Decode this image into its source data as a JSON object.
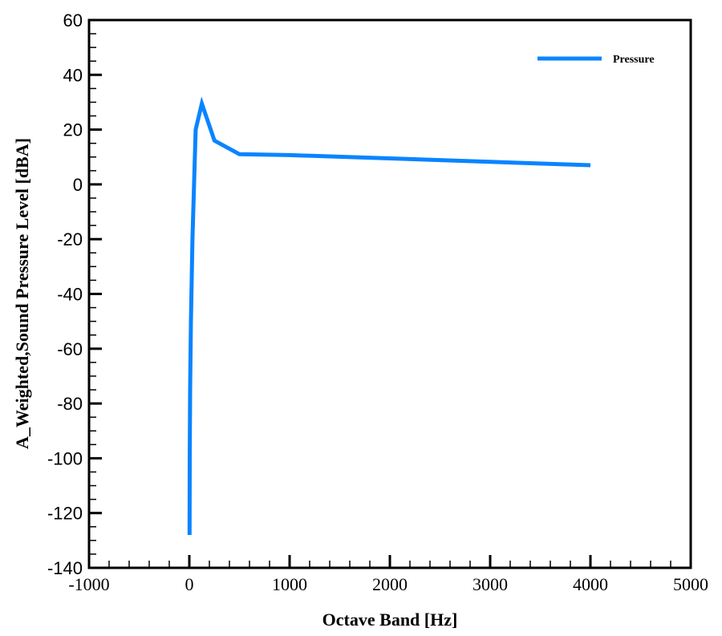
{
  "chart_data": {
    "type": "line",
    "title": "",
    "xlabel": "Octave Band [Hz]",
    "ylabel": "A_Weighted,Sound Pressure Level [dBA]",
    "xlim": [
      -1000,
      5000
    ],
    "ylim": [
      -140,
      60
    ],
    "x_ticks": [
      -1000,
      0,
      1000,
      2000,
      3000,
      4000,
      5000
    ],
    "x_tick_labels": [
      "-1000",
      "0",
      "1000",
      "2000",
      "3000",
      "4000",
      "5000"
    ],
    "y_ticks": [
      60,
      40,
      20,
      0,
      -20,
      -40,
      -60,
      -80,
      -100,
      -120,
      -140
    ],
    "y_tick_labels": [
      "60",
      "40",
      "20",
      "0",
      "-20",
      "-40",
      "-60",
      "-80",
      "-100",
      "-120",
      "-140"
    ],
    "x_minor_step": 200,
    "y_minor_step": 5,
    "grid": false,
    "legend_position": "upper right",
    "series": [
      {
        "name": "Pressure",
        "color": "#0a84ff",
        "x": [
          2,
          4,
          8,
          16,
          31.5,
          63,
          125,
          250,
          500,
          1000,
          2000,
          4000
        ],
        "values": [
          -128,
          -100,
          -75,
          -50,
          -20,
          20,
          29.5,
          16,
          11,
          10.7,
          9.5,
          7
        ]
      }
    ]
  },
  "legend": {
    "items": [
      {
        "label": "Pressure",
        "color": "#0a84ff"
      }
    ]
  }
}
